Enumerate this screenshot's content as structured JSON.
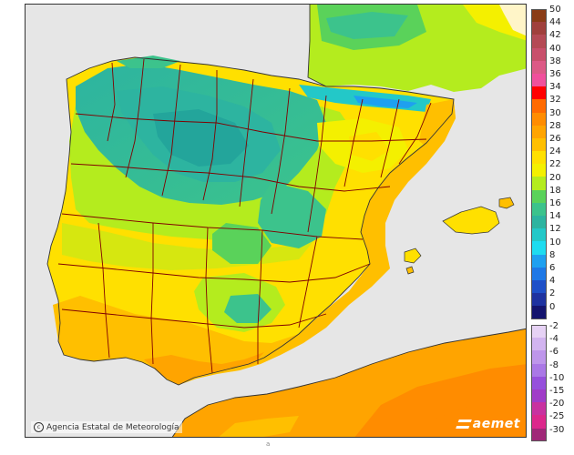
{
  "map": {
    "credit": "Agencia Estatal de Meteorología",
    "brand": "aemet",
    "note": "a"
  },
  "legend": {
    "warm": [
      {
        "label": "50",
        "color": "#8a3c16"
      },
      {
        "label": "44",
        "color": "#a0403c"
      },
      {
        "label": "42",
        "color": "#b44a55"
      },
      {
        "label": "40",
        "color": "#c8506c"
      },
      {
        "label": "38",
        "color": "#dc5a86"
      },
      {
        "label": "36",
        "color": "#f0509c"
      },
      {
        "label": "34",
        "color": "#ff0000"
      },
      {
        "label": "32",
        "color": "#ff6a00"
      },
      {
        "label": "30",
        "color": "#ff8c00"
      },
      {
        "label": "28",
        "color": "#ffa400"
      },
      {
        "label": "26",
        "color": "#ffbf00"
      },
      {
        "label": "24",
        "color": "#ffe000"
      },
      {
        "label": "22",
        "color": "#f4f000"
      },
      {
        "label": "20",
        "color": "#b4ec1e"
      },
      {
        "label": "18",
        "color": "#5ad25a"
      },
      {
        "label": "16",
        "color": "#3cc38c"
      },
      {
        "label": "14",
        "color": "#2db4a0"
      },
      {
        "label": "12",
        "color": "#23c8c8"
      },
      {
        "label": "10",
        "color": "#1edcf0"
      },
      {
        "label": "8",
        "color": "#1ea0f0"
      },
      {
        "label": "6",
        "color": "#1e78e6"
      },
      {
        "label": "4",
        "color": "#1e50c8"
      },
      {
        "label": "2",
        "color": "#1e32a0"
      },
      {
        "label": "0",
        "color": "#14146e"
      }
    ],
    "cold": [
      {
        "label": "-2",
        "color": "#e6d2f5"
      },
      {
        "label": "-4",
        "color": "#d2b4f0"
      },
      {
        "label": "-6",
        "color": "#be96eb"
      },
      {
        "label": "-8",
        "color": "#aa78e6"
      },
      {
        "label": "-10",
        "color": "#9650dc"
      },
      {
        "label": "-15",
        "color": "#a03cc8"
      },
      {
        "label": "-20",
        "color": "#c832a0"
      },
      {
        "label": "-25",
        "color": "#dc288c"
      },
      {
        "label": "-30",
        "color": "#a02878"
      }
    ]
  },
  "colors": {
    "sea": "#e6e6e6",
    "border": "#800000",
    "coast": "#333333"
  }
}
